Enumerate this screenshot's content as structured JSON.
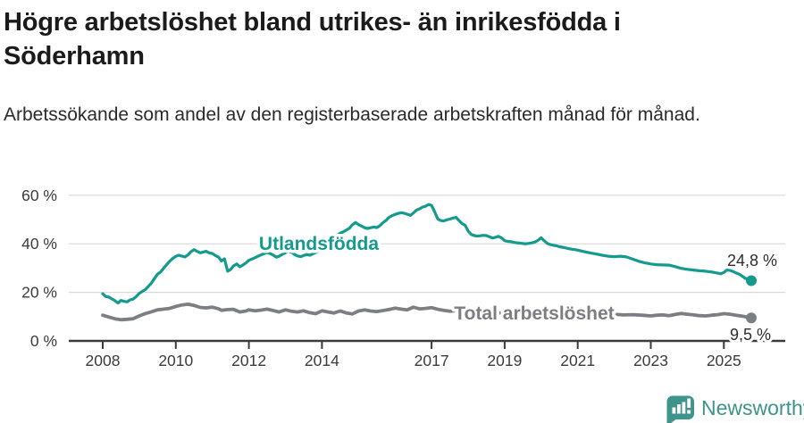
{
  "header": {
    "title": "Högre arbetslöshet bland utrikes- än inrikesfödda i Söderhamn",
    "subtitle": "Arbetssökande som andel av den registerbaserade arbetskraften månad för månad."
  },
  "footer": {
    "brand": "Newsworthy",
    "logo_icon": "bar-chart-speech-bubble-icon",
    "brand_color": "#3e938b"
  },
  "chart_data": {
    "type": "line",
    "unit": "%",
    "grid": true,
    "legend": "inline-labels",
    "style": {
      "grid_color": "#d9d9d9",
      "axis_color": "#3b3b3b",
      "background": "#ffffff"
    },
    "x_axis": {
      "ticks": [
        2008,
        2010,
        2012,
        2014,
        2017,
        2019,
        2021,
        2023,
        2025
      ],
      "labels": [
        "2008",
        "2010",
        "2012",
        "2014",
        "2017",
        "2019",
        "2021",
        "2023",
        "2025"
      ],
      "range": [
        2007.1,
        2026.7
      ]
    },
    "y_axis": {
      "ticks": [
        0,
        20,
        40,
        60
      ],
      "labels": [
        "0 %",
        "20 %",
        "40 %",
        "60 %"
      ],
      "range": [
        0,
        60
      ]
    },
    "series": [
      {
        "name": "Utlandsfödda",
        "slug": "utlandsfodda",
        "color": "#149b8e",
        "line_width": 3.2,
        "end_label": "24,8 %",
        "points": [
          [
            2008.0,
            19.4
          ],
          [
            2008.08,
            18.3
          ],
          [
            2008.17,
            18.0
          ],
          [
            2008.25,
            17.3
          ],
          [
            2008.33,
            16.6
          ],
          [
            2008.42,
            15.6
          ],
          [
            2008.5,
            16.7
          ],
          [
            2008.58,
            16.3
          ],
          [
            2008.67,
            16.1
          ],
          [
            2008.75,
            16.9
          ],
          [
            2008.83,
            17.2
          ],
          [
            2008.92,
            18.3
          ],
          [
            2009.0,
            19.6
          ],
          [
            2009.17,
            21.2
          ],
          [
            2009.33,
            23.8
          ],
          [
            2009.5,
            27.5
          ],
          [
            2009.58,
            28.3
          ],
          [
            2009.67,
            30.0
          ],
          [
            2009.83,
            32.8
          ],
          [
            2009.92,
            34.0
          ],
          [
            2010.0,
            34.8
          ],
          [
            2010.08,
            35.3
          ],
          [
            2010.17,
            34.9
          ],
          [
            2010.25,
            34.6
          ],
          [
            2010.33,
            35.4
          ],
          [
            2010.42,
            36.8
          ],
          [
            2010.5,
            37.6
          ],
          [
            2010.58,
            36.9
          ],
          [
            2010.67,
            36.3
          ],
          [
            2010.75,
            36.6
          ],
          [
            2010.83,
            36.9
          ],
          [
            2010.92,
            36.2
          ],
          [
            2011.0,
            36.0
          ],
          [
            2011.08,
            35.2
          ],
          [
            2011.17,
            34.5
          ],
          [
            2011.25,
            32.9
          ],
          [
            2011.33,
            33.8
          ],
          [
            2011.42,
            28.7
          ],
          [
            2011.5,
            29.4
          ],
          [
            2011.58,
            30.9
          ],
          [
            2011.67,
            31.7
          ],
          [
            2011.75,
            30.5
          ],
          [
            2011.83,
            31.2
          ],
          [
            2011.92,
            32.1
          ],
          [
            2012.0,
            33.2
          ],
          [
            2012.08,
            33.7
          ],
          [
            2012.17,
            34.3
          ],
          [
            2012.25,
            34.9
          ],
          [
            2012.33,
            35.4
          ],
          [
            2012.42,
            36.0
          ],
          [
            2012.5,
            36.4
          ],
          [
            2012.58,
            36.0
          ],
          [
            2012.67,
            35.3
          ],
          [
            2012.75,
            34.5
          ],
          [
            2012.83,
            34.9
          ],
          [
            2012.92,
            35.7
          ],
          [
            2013.0,
            36.3
          ],
          [
            2013.08,
            36.9
          ],
          [
            2013.17,
            36.5
          ],
          [
            2013.25,
            35.6
          ],
          [
            2013.33,
            35.0
          ],
          [
            2013.42,
            34.7
          ],
          [
            2013.5,
            35.2
          ],
          [
            2013.58,
            35.6
          ],
          [
            2013.67,
            35.3
          ],
          [
            2013.75,
            35.9
          ],
          [
            2013.83,
            36.4
          ],
          [
            2013.92,
            37.3
          ],
          [
            2014.0,
            38.5
          ],
          [
            2014.08,
            39.2
          ],
          [
            2014.17,
            40.3
          ],
          [
            2014.25,
            41.4
          ],
          [
            2014.33,
            42.4
          ],
          [
            2014.42,
            43.5
          ],
          [
            2014.5,
            44.4
          ],
          [
            2014.58,
            44.9
          ],
          [
            2014.67,
            45.7
          ],
          [
            2014.75,
            46.4
          ],
          [
            2014.83,
            47.8
          ],
          [
            2014.92,
            48.8
          ],
          [
            2015.0,
            47.9
          ],
          [
            2015.08,
            47.3
          ],
          [
            2015.17,
            46.6
          ],
          [
            2015.25,
            46.3
          ],
          [
            2015.33,
            46.6
          ],
          [
            2015.42,
            46.9
          ],
          [
            2015.5,
            46.7
          ],
          [
            2015.58,
            47.4
          ],
          [
            2015.67,
            48.7
          ],
          [
            2015.75,
            49.6
          ],
          [
            2015.83,
            50.8
          ],
          [
            2015.92,
            51.6
          ],
          [
            2016.0,
            52.1
          ],
          [
            2016.08,
            52.5
          ],
          [
            2016.17,
            52.8
          ],
          [
            2016.25,
            52.6
          ],
          [
            2016.33,
            52.2
          ],
          [
            2016.42,
            51.7
          ],
          [
            2016.5,
            52.6
          ],
          [
            2016.58,
            53.8
          ],
          [
            2016.67,
            54.4
          ],
          [
            2016.75,
            55.1
          ],
          [
            2016.83,
            55.4
          ],
          [
            2016.92,
            56.2
          ],
          [
            2017.0,
            55.8
          ],
          [
            2017.08,
            53.3
          ],
          [
            2017.17,
            50.2
          ],
          [
            2017.25,
            49.6
          ],
          [
            2017.33,
            49.4
          ],
          [
            2017.42,
            49.9
          ],
          [
            2017.5,
            50.2
          ],
          [
            2017.58,
            50.6
          ],
          [
            2017.67,
            50.9
          ],
          [
            2017.75,
            49.6
          ],
          [
            2017.83,
            48.4
          ],
          [
            2017.92,
            47.6
          ],
          [
            2018.0,
            45.3
          ],
          [
            2018.08,
            43.9
          ],
          [
            2018.17,
            43.4
          ],
          [
            2018.25,
            43.2
          ],
          [
            2018.33,
            43.3
          ],
          [
            2018.42,
            43.5
          ],
          [
            2018.5,
            43.4
          ],
          [
            2018.58,
            42.9
          ],
          [
            2018.67,
            42.4
          ],
          [
            2018.75,
            42.7
          ],
          [
            2018.83,
            43.1
          ],
          [
            2018.92,
            42.4
          ],
          [
            2019.0,
            41.3
          ],
          [
            2019.08,
            41.0
          ],
          [
            2019.17,
            40.9
          ],
          [
            2019.25,
            40.6
          ],
          [
            2019.33,
            40.4
          ],
          [
            2019.42,
            40.3
          ],
          [
            2019.5,
            40.1
          ],
          [
            2019.58,
            40.0
          ],
          [
            2019.67,
            40.2
          ],
          [
            2019.75,
            40.4
          ],
          [
            2019.83,
            40.7
          ],
          [
            2019.92,
            41.5
          ],
          [
            2020.0,
            42.5
          ],
          [
            2020.08,
            41.3
          ],
          [
            2020.17,
            40.1
          ],
          [
            2020.25,
            39.7
          ],
          [
            2020.33,
            39.4
          ],
          [
            2020.42,
            39.2
          ],
          [
            2020.5,
            38.8
          ],
          [
            2020.58,
            38.6
          ],
          [
            2020.67,
            38.3
          ],
          [
            2020.75,
            38.0
          ],
          [
            2020.83,
            37.8
          ],
          [
            2020.92,
            37.6
          ],
          [
            2021.0,
            37.4
          ],
          [
            2021.17,
            36.8
          ],
          [
            2021.33,
            36.3
          ],
          [
            2021.5,
            35.8
          ],
          [
            2021.67,
            35.3
          ],
          [
            2021.83,
            34.9
          ],
          [
            2022.0,
            34.7
          ],
          [
            2022.17,
            34.9
          ],
          [
            2022.33,
            34.6
          ],
          [
            2022.5,
            33.7
          ],
          [
            2022.67,
            32.8
          ],
          [
            2022.83,
            32.2
          ],
          [
            2023.0,
            31.7
          ],
          [
            2023.17,
            31.4
          ],
          [
            2023.33,
            31.3
          ],
          [
            2023.5,
            31.2
          ],
          [
            2023.67,
            30.6
          ],
          [
            2023.83,
            29.9
          ],
          [
            2024.0,
            29.5
          ],
          [
            2024.17,
            29.2
          ],
          [
            2024.33,
            28.9
          ],
          [
            2024.5,
            28.7
          ],
          [
            2024.67,
            28.4
          ],
          [
            2024.83,
            27.9
          ],
          [
            2024.92,
            27.7
          ],
          [
            2025.0,
            28.2
          ],
          [
            2025.08,
            29.2
          ],
          [
            2025.17,
            29.0
          ],
          [
            2025.25,
            28.6
          ],
          [
            2025.33,
            28.0
          ],
          [
            2025.42,
            27.5
          ],
          [
            2025.5,
            26.7
          ],
          [
            2025.58,
            25.8
          ],
          [
            2025.75,
            24.8
          ]
        ]
      },
      {
        "name": "Total arbetslöshet",
        "slug": "total-arbetsloshet",
        "color": "#7b7e82",
        "line_width": 3.8,
        "end_label": "9,5 %",
        "points": [
          [
            2008.0,
            10.6
          ],
          [
            2008.17,
            9.8
          ],
          [
            2008.33,
            9.1
          ],
          [
            2008.5,
            8.7
          ],
          [
            2008.67,
            8.9
          ],
          [
            2008.83,
            9.1
          ],
          [
            2009.0,
            10.3
          ],
          [
            2009.17,
            11.3
          ],
          [
            2009.33,
            12.0
          ],
          [
            2009.5,
            12.8
          ],
          [
            2009.67,
            13.1
          ],
          [
            2009.83,
            13.4
          ],
          [
            2010.0,
            14.2
          ],
          [
            2010.17,
            14.8
          ],
          [
            2010.33,
            15.1
          ],
          [
            2010.5,
            14.6
          ],
          [
            2010.67,
            13.8
          ],
          [
            2010.83,
            13.6
          ],
          [
            2011.0,
            13.9
          ],
          [
            2011.17,
            13.2
          ],
          [
            2011.25,
            12.6
          ],
          [
            2011.42,
            12.9
          ],
          [
            2011.58,
            13.0
          ],
          [
            2011.75,
            11.9
          ],
          [
            2011.92,
            12.3
          ],
          [
            2012.0,
            12.8
          ],
          [
            2012.17,
            12.4
          ],
          [
            2012.33,
            12.7
          ],
          [
            2012.5,
            13.1
          ],
          [
            2012.67,
            12.5
          ],
          [
            2012.83,
            11.9
          ],
          [
            2013.0,
            12.8
          ],
          [
            2013.17,
            12.2
          ],
          [
            2013.33,
            11.9
          ],
          [
            2013.5,
            12.4
          ],
          [
            2013.67,
            11.6
          ],
          [
            2013.83,
            11.2
          ],
          [
            2014.0,
            12.4
          ],
          [
            2014.17,
            11.9
          ],
          [
            2014.33,
            11.5
          ],
          [
            2014.5,
            12.3
          ],
          [
            2014.67,
            11.5
          ],
          [
            2014.83,
            11.1
          ],
          [
            2015.0,
            12.3
          ],
          [
            2015.17,
            12.8
          ],
          [
            2015.33,
            12.3
          ],
          [
            2015.5,
            12.1
          ],
          [
            2015.67,
            12.5
          ],
          [
            2015.83,
            12.9
          ],
          [
            2016.0,
            13.5
          ],
          [
            2016.17,
            13.1
          ],
          [
            2016.33,
            12.8
          ],
          [
            2016.5,
            13.9
          ],
          [
            2016.67,
            13.2
          ],
          [
            2016.83,
            13.4
          ],
          [
            2017.0,
            13.7
          ],
          [
            2017.17,
            13.0
          ],
          [
            2017.33,
            12.6
          ],
          [
            2017.5,
            12.2
          ],
          [
            2017.67,
            12.5
          ],
          [
            2017.83,
            12.3
          ],
          [
            2018.0,
            12.4
          ],
          [
            2018.25,
            11.9
          ],
          [
            2018.5,
            11.9
          ],
          [
            2018.75,
            11.4
          ],
          [
            2019.0,
            11.6
          ],
          [
            2019.25,
            11.2
          ],
          [
            2019.5,
            11.3
          ],
          [
            2019.75,
            11.1
          ],
          [
            2020.0,
            11.6
          ],
          [
            2020.25,
            12.5
          ],
          [
            2020.5,
            13.0
          ],
          [
            2020.75,
            12.6
          ],
          [
            2021.0,
            12.4
          ],
          [
            2021.25,
            11.9
          ],
          [
            2021.5,
            11.4
          ],
          [
            2021.75,
            11.0
          ],
          [
            2022.0,
            11.0
          ],
          [
            2022.25,
            10.7
          ],
          [
            2022.5,
            10.8
          ],
          [
            2022.75,
            10.6
          ],
          [
            2023.0,
            10.3
          ],
          [
            2023.17,
            10.6
          ],
          [
            2023.33,
            10.7
          ],
          [
            2023.5,
            10.4
          ],
          [
            2023.67,
            10.9
          ],
          [
            2023.83,
            11.3
          ],
          [
            2024.0,
            11.0
          ],
          [
            2024.17,
            10.7
          ],
          [
            2024.33,
            10.4
          ],
          [
            2024.5,
            10.3
          ],
          [
            2024.67,
            10.6
          ],
          [
            2024.83,
            10.8
          ],
          [
            2025.0,
            11.2
          ],
          [
            2025.17,
            11.0
          ],
          [
            2025.33,
            10.6
          ],
          [
            2025.5,
            10.2
          ],
          [
            2025.75,
            9.5
          ]
        ]
      }
    ]
  }
}
